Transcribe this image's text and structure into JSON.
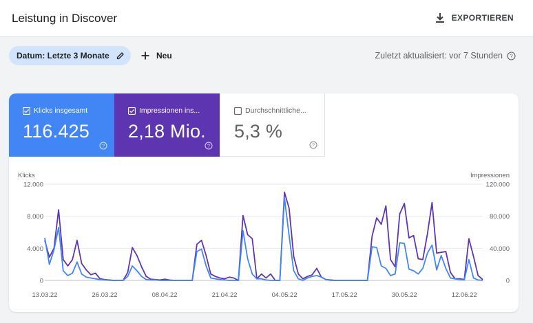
{
  "header": {
    "title": "Leistung in Discover",
    "export_label": "EXPORTIEREN"
  },
  "filters": {
    "date_chip_label": "Datum: Letzte 3 Monate",
    "new_label": "Neu",
    "last_updated": "Zuletzt aktualisiert: vor 7 Stunden"
  },
  "metrics": {
    "clicks": {
      "label": "Klicks insgesamt",
      "value": "116.425",
      "checked": true,
      "color": "#4285f4"
    },
    "impressions": {
      "label": "Impressionen ins...",
      "value": "2,18 Mio.",
      "checked": true,
      "color": "#5e35b1"
    },
    "ctr": {
      "label": "Durchschnittliche...",
      "value": "5,3 %",
      "checked": false
    }
  },
  "chart_data": {
    "type": "line",
    "left_axis_label": "Klicks",
    "right_axis_label": "Impressionen",
    "y_left_ticks": [
      "12.000",
      "8.000",
      "4.000",
      "0"
    ],
    "y_right_ticks": [
      "120.000",
      "80.000",
      "40.000",
      "0"
    ],
    "ylim_left": [
      0,
      12000
    ],
    "ylim_right": [
      0,
      120000
    ],
    "x_tick_labels": [
      "13.03.22",
      "26.03.22",
      "08.04.22",
      "21.04.22",
      "04.05.22",
      "17.05.22",
      "30.05.22",
      "12.06.22"
    ],
    "x_tick_index": [
      0,
      13,
      26,
      39,
      52,
      65,
      78,
      91
    ],
    "series": [
      {
        "name": "Klicks",
        "axis": "left",
        "color": "#4285f4",
        "values": [
          5300,
          2000,
          3800,
          6600,
          1200,
          600,
          900,
          2300,
          800,
          400,
          300,
          200,
          100,
          50,
          20,
          0,
          0,
          0,
          500,
          1800,
          1200,
          500,
          100,
          50,
          50,
          0,
          0,
          0,
          0,
          0,
          0,
          0,
          0,
          3600,
          3900,
          1800,
          300,
          200,
          100,
          50,
          0,
          0,
          0,
          6200,
          2700,
          800,
          200,
          200,
          50,
          0,
          0,
          0,
          10300,
          5600,
          1200,
          200,
          0,
          300,
          500,
          600,
          400,
          100,
          0,
          0,
          0,
          0,
          0,
          0,
          0,
          0,
          0,
          4200,
          4100,
          1800,
          1500,
          600,
          800,
          4700,
          4600,
          1400,
          1200,
          800,
          1500,
          3400,
          4400,
          1300,
          3100,
          1500,
          300,
          200,
          100,
          50,
          2600,
          300,
          50,
          0
        ]
      },
      {
        "name": "Impressionen",
        "axis": "right",
        "color": "#5e35b1",
        "values": [
          50000,
          29000,
          40000,
          88000,
          26000,
          18000,
          26000,
          50000,
          21000,
          13000,
          7000,
          9000,
          2000,
          1000,
          500,
          0,
          0,
          0,
          10000,
          41000,
          31000,
          17000,
          5000,
          1500,
          1000,
          500,
          1500,
          500,
          0,
          0,
          0,
          0,
          0,
          45000,
          50000,
          31000,
          8000,
          5000,
          3000,
          2000,
          4000,
          3000,
          0,
          81000,
          57000,
          52000,
          2000,
          8000,
          3000,
          8000,
          0,
          0,
          110000,
          90000,
          30000,
          8000,
          2000,
          5000,
          7000,
          15000,
          4000,
          1000,
          500,
          0,
          0,
          0,
          0,
          0,
          0,
          0,
          0,
          55000,
          78000,
          70000,
          93000,
          26000,
          17000,
          83000,
          96000,
          53000,
          56000,
          27000,
          26000,
          58000,
          97000,
          34000,
          35000,
          36000,
          10000,
          2000,
          2000,
          1000,
          52000,
          30000,
          6000,
          1000
        ]
      }
    ]
  }
}
